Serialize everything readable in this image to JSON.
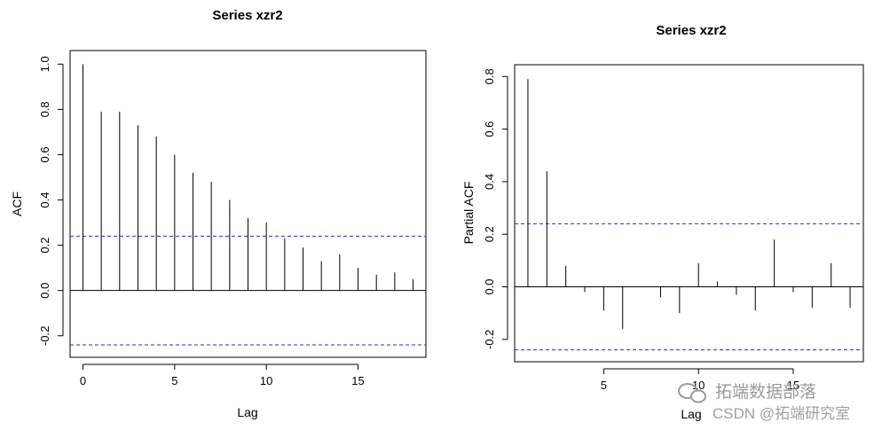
{
  "chart_data": [
    {
      "type": "bar",
      "title": "Series  xzr2",
      "xlabel": "Lag",
      "ylabel": "ACF",
      "xlim": [
        -0.7,
        18.7
      ],
      "ylim": [
        -0.295,
        1.06
      ],
      "xticks": [
        0,
        5,
        10,
        15
      ],
      "yticks": [
        -0.2,
        0.0,
        0.2,
        0.4,
        0.6,
        0.8,
        1.0
      ],
      "ytick_labels": [
        "-0.2",
        "0.0",
        "0.2",
        "0.4",
        "0.6",
        "0.8",
        "1.0"
      ],
      "lags": [
        0,
        1,
        2,
        3,
        4,
        5,
        6,
        7,
        8,
        9,
        10,
        11,
        12,
        13,
        14,
        15,
        16,
        17,
        18
      ],
      "values": [
        1.0,
        0.79,
        0.79,
        0.73,
        0.68,
        0.6,
        0.52,
        0.48,
        0.4,
        0.32,
        0.3,
        0.23,
        0.19,
        0.13,
        0.16,
        0.1,
        0.07,
        0.08,
        0.05
      ],
      "confidence_band": 0.24
    },
    {
      "type": "bar",
      "title": "Series  xzr2",
      "xlabel": "Lag",
      "ylabel": "Partial ACF",
      "xlim": [
        0.3,
        18.7
      ],
      "ylim": [
        -0.285,
        0.845
      ],
      "xticks": [
        5,
        10,
        15
      ],
      "yticks": [
        -0.2,
        0.0,
        0.2,
        0.4,
        0.6,
        0.8
      ],
      "ytick_labels": [
        "-0.2",
        "0.0",
        "0.2",
        "0.4",
        "0.6",
        "0.8"
      ],
      "lags": [
        1,
        2,
        3,
        4,
        5,
        6,
        7,
        8,
        9,
        10,
        11,
        12,
        13,
        14,
        15,
        16,
        17,
        18
      ],
      "values": [
        0.79,
        0.44,
        0.08,
        -0.02,
        -0.09,
        -0.16,
        0.0,
        -0.04,
        -0.1,
        0.09,
        0.02,
        -0.03,
        -0.09,
        0.18,
        -0.02,
        -0.08,
        0.09,
        -0.08
      ],
      "confidence_band": 0.24
    }
  ],
  "watermark": {
    "brand": "拓端数据部落",
    "credit": "CSDN @拓端研究室"
  }
}
